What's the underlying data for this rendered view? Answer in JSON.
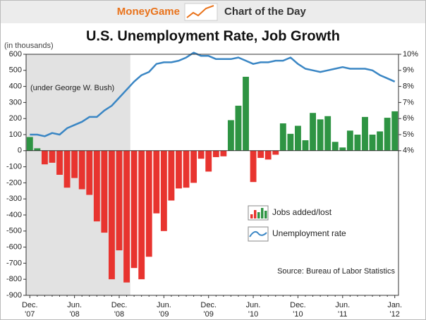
{
  "header": {
    "brand": "MoneyGame",
    "section": "Chart of the Day"
  },
  "chart_data": {
    "type": "bar",
    "title": "U.S. Unemployment Rate, Job Growth",
    "y_label": "(in thousands)",
    "annotation": "(under George W. Bush)",
    "source": "Source: Bureau of Labor Statistics",
    "categories": [
      "Dec. '07",
      null,
      null,
      null,
      null,
      null,
      "Jun. '08",
      null,
      null,
      null,
      null,
      null,
      "Dec. '08",
      null,
      null,
      null,
      null,
      null,
      "Jun. '09",
      null,
      null,
      null,
      null,
      null,
      "Dec. '09",
      null,
      null,
      null,
      null,
      null,
      "Jun. '10",
      null,
      null,
      null,
      null,
      null,
      "Dec. '10",
      null,
      null,
      null,
      null,
      null,
      "Jun. '11",
      null,
      null,
      null,
      null,
      null,
      null,
      "Jan. '12"
    ],
    "series": [
      {
        "name": "Jobs added/lost",
        "type": "bar",
        "color": "#2e9443",
        "negative_color": "#e8342f",
        "values": [
          85,
          15,
          -85,
          -75,
          -150,
          -230,
          -170,
          -240,
          -275,
          -440,
          -510,
          -800,
          -620,
          -820,
          -730,
          -800,
          -660,
          -390,
          -500,
          -310,
          -235,
          -230,
          -200,
          -50,
          -130,
          -40,
          -35,
          190,
          280,
          460,
          -195,
          -45,
          -55,
          -25,
          170,
          105,
          155,
          65,
          235,
          195,
          215,
          55,
          20,
          125,
          100,
          210,
          100,
          120,
          205,
          245
        ]
      },
      {
        "name": "Unemployment rate",
        "type": "line",
        "axis": "y2",
        "color": "#3a86c4",
        "values": [
          5.0,
          5.0,
          4.9,
          5.1,
          5.0,
          5.4,
          5.6,
          5.8,
          6.1,
          6.1,
          6.5,
          6.8,
          7.3,
          7.8,
          8.3,
          8.7,
          8.9,
          9.4,
          9.5,
          9.5,
          9.6,
          9.8,
          10.1,
          9.9,
          9.9,
          9.7,
          9.7,
          9.7,
          9.8,
          9.6,
          9.4,
          9.5,
          9.5,
          9.6,
          9.6,
          9.8,
          9.4,
          9.1,
          9.0,
          8.9,
          9.0,
          9.1,
          9.2,
          9.1,
          9.1,
          9.1,
          9.0,
          8.7,
          8.5,
          8.3
        ]
      }
    ],
    "ylim": [
      -900,
      600
    ],
    "yticks": [
      600,
      500,
      400,
      300,
      200,
      100,
      0,
      -100,
      -200,
      -300,
      -400,
      -500,
      -600,
      -700,
      -800,
      -900
    ],
    "y2lim": [
      -5,
      10
    ],
    "y2ticks": [
      {
        "value": 10,
        "label": "10%"
      },
      {
        "value": 9,
        "label": "9%"
      },
      {
        "value": 8,
        "label": "8%"
      },
      {
        "value": 7,
        "label": "7%"
      },
      {
        "value": 6,
        "label": "6%"
      },
      {
        "value": 5,
        "label": "5%"
      },
      {
        "value": 4,
        "label": "4%"
      }
    ],
    "grid": false,
    "legend": "lower right"
  }
}
